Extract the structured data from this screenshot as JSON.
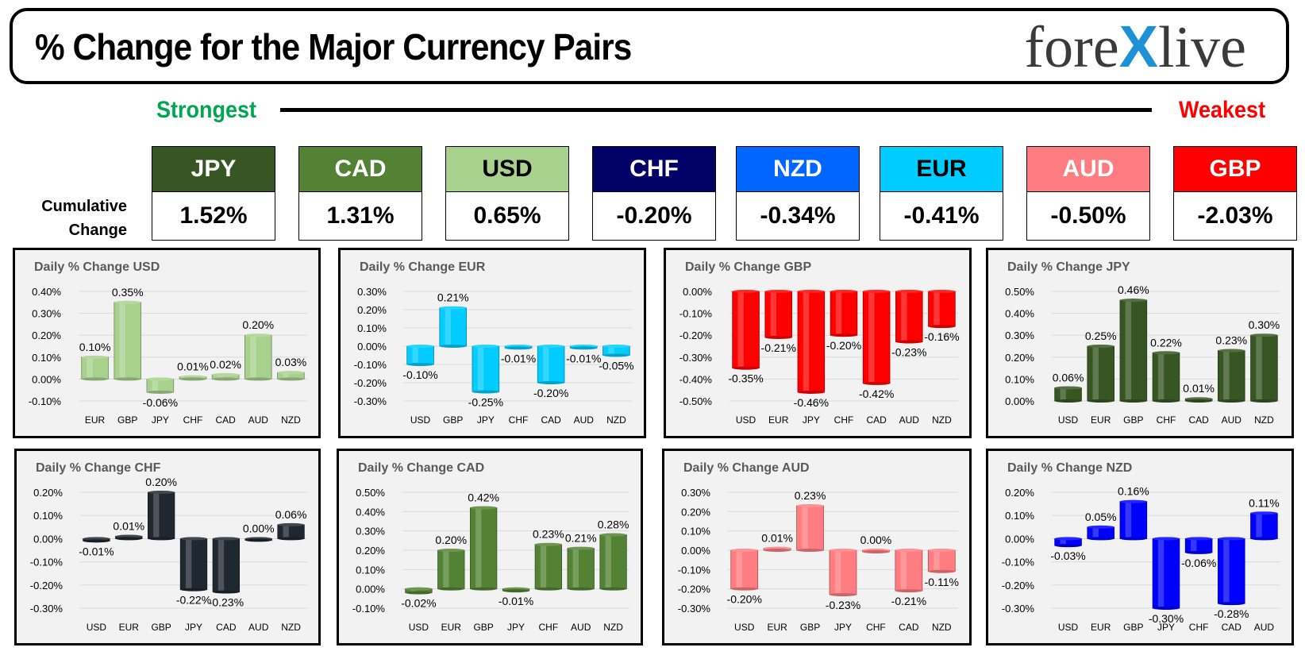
{
  "header": {
    "title": "% Change for the Major Currency Pairs",
    "logo_left": "fore",
    "logo_x": "X",
    "logo_right": "live"
  },
  "scale": {
    "strongest": "Strongest",
    "weakest": "Weakest"
  },
  "cumulative": {
    "label_line1": "Cumulative",
    "label_line2": "Change",
    "items": [
      {
        "code": "JPY",
        "value": "1.52%",
        "bg": "#375623",
        "fg": "#ffffff"
      },
      {
        "code": "CAD",
        "value": "1.31%",
        "bg": "#548235",
        "fg": "#ffffff"
      },
      {
        "code": "USD",
        "value": "0.65%",
        "bg": "#a9d18e",
        "fg": "#000000"
      },
      {
        "code": "CHF",
        "value": "-0.20%",
        "bg": "#000066",
        "fg": "#ffffff"
      },
      {
        "code": "NZD",
        "value": "-0.34%",
        "bg": "#0066ff",
        "fg": "#ffffff"
      },
      {
        "code": "EUR",
        "value": "-0.41%",
        "bg": "#00ccff",
        "fg": "#000000"
      },
      {
        "code": "AUD",
        "value": "-0.50%",
        "bg": "#ff7c80",
        "fg": "#ffffff"
      },
      {
        "code": "GBP",
        "value": "-2.03%",
        "bg": "#ff0000",
        "fg": "#ffffff"
      }
    ]
  },
  "chart_data": [
    {
      "type": "bar",
      "title": "Daily % Change USD",
      "color": "#a9d18e",
      "categories": [
        "EUR",
        "GBP",
        "JPY",
        "CHF",
        "CAD",
        "AUD",
        "NZD"
      ],
      "values": [
        0.1,
        0.35,
        -0.06,
        0.01,
        0.02,
        0.2,
        0.03
      ],
      "labels": [
        "0.10%",
        "0.35%",
        "-0.06%",
        "0.01%",
        "0.02%",
        "0.20%",
        "0.03%"
      ],
      "ylim": [
        -0.1,
        0.4
      ],
      "ticks": [
        "-0.10%",
        "0.00%",
        "0.10%",
        "0.20%",
        "0.30%",
        "0.40%"
      ]
    },
    {
      "type": "bar",
      "title": "Daily % Change EUR",
      "color": "#00ccff",
      "categories": [
        "USD",
        "GBP",
        "JPY",
        "CHF",
        "CAD",
        "AUD",
        "NZD"
      ],
      "values": [
        -0.1,
        0.21,
        -0.25,
        -0.01,
        -0.2,
        -0.01,
        -0.05
      ],
      "labels": [
        "-0.10%",
        "0.21%",
        "-0.25%",
        "-0.01%",
        "-0.20%",
        "-0.01%",
        "-0.05%"
      ],
      "ylim": [
        -0.3,
        0.3
      ],
      "ticks": [
        "-0.30%",
        "-0.20%",
        "-0.10%",
        "0.00%",
        "0.10%",
        "0.20%",
        "0.30%"
      ]
    },
    {
      "type": "bar",
      "title": "Daily % Change GBP",
      "color": "#ff0000",
      "categories": [
        "USD",
        "EUR",
        "JPY",
        "CHF",
        "CAD",
        "AUD",
        "NZD"
      ],
      "values": [
        -0.35,
        -0.21,
        -0.46,
        -0.2,
        -0.42,
        -0.23,
        -0.16
      ],
      "labels": [
        "-0.35%",
        "-0.21%",
        "-0.46%",
        "-0.20%",
        "-0.42%",
        "-0.23%",
        "-0.16%"
      ],
      "ylim": [
        -0.5,
        0.0
      ],
      "ticks": [
        "-0.50%",
        "-0.40%",
        "-0.30%",
        "-0.20%",
        "-0.10%",
        "0.00%"
      ]
    },
    {
      "type": "bar",
      "title": "Daily % Change JPY",
      "color": "#375623",
      "categories": [
        "USD",
        "EUR",
        "GBP",
        "CHF",
        "CAD",
        "AUD",
        "NZD"
      ],
      "values": [
        0.06,
        0.25,
        0.46,
        0.22,
        0.01,
        0.23,
        0.3
      ],
      "labels": [
        "0.06%",
        "0.25%",
        "0.46%",
        "0.22%",
        "0.01%",
        "0.23%",
        "0.30%"
      ],
      "ylim": [
        0.0,
        0.5
      ],
      "ticks": [
        "0.00%",
        "0.10%",
        "0.20%",
        "0.30%",
        "0.40%",
        "0.50%"
      ]
    },
    {
      "type": "bar",
      "title": "Daily % Change CHF",
      "color": "#1f2730",
      "categories": [
        "USD",
        "EUR",
        "GBP",
        "JPY",
        "CAD",
        "AUD",
        "NZD"
      ],
      "values": [
        -0.01,
        0.01,
        0.2,
        -0.22,
        -0.23,
        0.0,
        0.06
      ],
      "labels": [
        "-0.01%",
        "0.01%",
        "0.20%",
        "-0.22%",
        "-0.23%",
        "0.00%",
        "0.06%"
      ],
      "ylim": [
        -0.3,
        0.2
      ],
      "ticks": [
        "-0.30%",
        "-0.20%",
        "-0.10%",
        "0.00%",
        "0.10%",
        "0.20%"
      ]
    },
    {
      "type": "bar",
      "title": "Daily % Change CAD",
      "color": "#548235",
      "categories": [
        "USD",
        "EUR",
        "GBP",
        "JPY",
        "CHF",
        "AUD",
        "NZD"
      ],
      "values": [
        -0.02,
        0.2,
        0.42,
        -0.01,
        0.23,
        0.21,
        0.28
      ],
      "labels": [
        "-0.02%",
        "0.20%",
        "0.42%",
        "-0.01%",
        "0.23%",
        "0.21%",
        "0.28%"
      ],
      "ylim": [
        -0.1,
        0.5
      ],
      "ticks": [
        "-0.10%",
        "0.00%",
        "0.10%",
        "0.20%",
        "0.30%",
        "0.40%",
        "0.50%"
      ]
    },
    {
      "type": "bar",
      "title": "Daily % Change AUD",
      "color": "#ff7c80",
      "categories": [
        "USD",
        "EUR",
        "GBP",
        "JPY",
        "CHF",
        "CAD",
        "NZD"
      ],
      "values": [
        -0.2,
        0.01,
        0.23,
        -0.23,
        0.0,
        -0.21,
        -0.11
      ],
      "labels": [
        "-0.20%",
        "0.01%",
        "0.23%",
        "-0.23%",
        "0.00%",
        "-0.21%",
        "-0.11%"
      ],
      "ylim": [
        -0.3,
        0.3
      ],
      "ticks": [
        "-0.30%",
        "-0.20%",
        "-0.10%",
        "0.00%",
        "0.10%",
        "0.20%",
        "0.30%"
      ]
    },
    {
      "type": "bar",
      "title": "Daily % Change NZD",
      "color": "#0000ff",
      "categories": [
        "USD",
        "EUR",
        "GBP",
        "JPY",
        "CHF",
        "CAD",
        "AUD"
      ],
      "values": [
        -0.03,
        0.05,
        0.16,
        -0.3,
        -0.06,
        -0.28,
        0.11
      ],
      "labels": [
        "-0.03%",
        "0.05%",
        "0.16%",
        "-0.30%",
        "-0.06%",
        "-0.28%",
        "0.11%"
      ],
      "ylim": [
        -0.3,
        0.2
      ],
      "ticks": [
        "-0.30%",
        "-0.20%",
        "-0.10%",
        "0.00%",
        "0.10%",
        "0.20%"
      ]
    }
  ]
}
